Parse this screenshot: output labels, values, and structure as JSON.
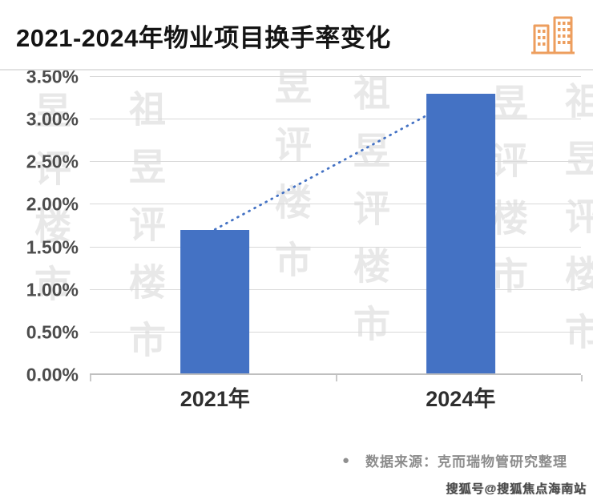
{
  "header": {
    "icon": "buildings-icon"
  },
  "colors": {
    "bar": "#4472C4",
    "grid": "#D9D9D9",
    "axis": "#BFBFBF",
    "text": "#4D4D4D",
    "icon": "#ED9E5E"
  },
  "chart_data": {
    "type": "bar",
    "title": "2021-2024年物业项目换手率变化",
    "categories": [
      "2021年",
      "2024年"
    ],
    "values": [
      1.7,
      3.3
    ],
    "unit": "%",
    "xlabel": "",
    "ylabel": "",
    "ylim": [
      0,
      3.5
    ],
    "yticks": [
      {
        "value": 0.0,
        "label": "0.00%"
      },
      {
        "value": 0.5,
        "label": "0.50%"
      },
      {
        "value": 1.0,
        "label": "1.00%"
      },
      {
        "value": 1.5,
        "label": "1.50%"
      },
      {
        "value": 2.0,
        "label": "2.00%"
      },
      {
        "value": 2.5,
        "label": "2.50%"
      },
      {
        "value": 3.0,
        "label": "3.00%"
      },
      {
        "value": 3.5,
        "label": "3.50%"
      }
    ],
    "grid": "horizontal",
    "legend": false,
    "trend_line": {
      "style": "dotted",
      "from": "2021年",
      "to": "2024年"
    }
  },
  "source": {
    "bullet": "●",
    "text": "数据来源：克而瑞物管研究整理"
  },
  "watermark": {
    "pattern_text": "丁祖昱评楼市",
    "bottom_right": "搜狐号@搜狐焦点海南站"
  }
}
